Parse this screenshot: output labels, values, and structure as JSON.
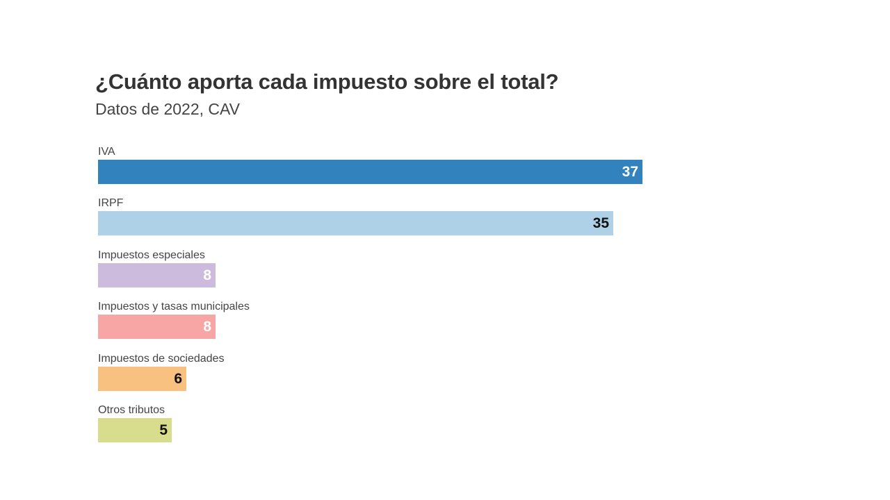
{
  "chart_data": {
    "type": "bar",
    "orientation": "horizontal",
    "title": "¿Cuánto aporta cada impuesto sobre el total?",
    "subtitle": "Datos de 2022, CAV",
    "xlim": [
      0,
      37
    ],
    "grid": false,
    "legend": "none",
    "categories": [
      "IVA",
      "IRPF",
      "Impuestos especiales",
      "Impuestos y tasas municipales",
      "Impuestos de sociedades",
      "Otros tributos"
    ],
    "values": [
      37,
      35,
      8,
      8,
      6,
      5
    ],
    "data_labels": [
      "37",
      "35",
      "8",
      "8",
      "6",
      "5"
    ],
    "colors": [
      "#3182bd",
      "#aed1e7",
      "#ccbbdc",
      "#f7a5a5",
      "#f9c180",
      "#d7dd8c"
    ],
    "label_colors": [
      "#ffffff",
      "#111111",
      "#ffffff",
      "#ffffff",
      "#111111",
      "#111111"
    ]
  }
}
